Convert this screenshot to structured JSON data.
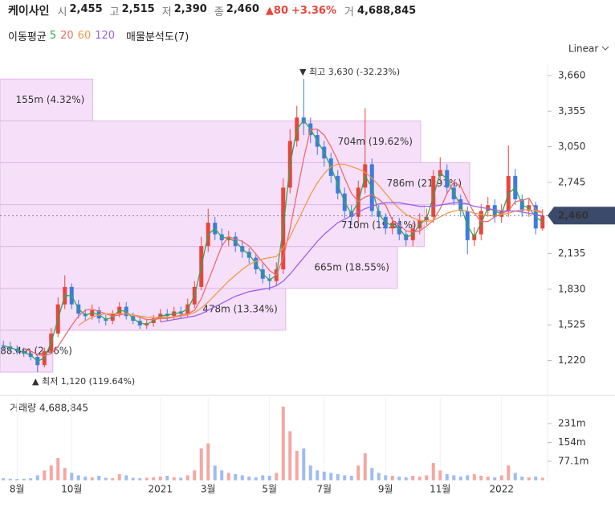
{
  "header": {
    "name": "케이사인",
    "fields": [
      {
        "label": "시",
        "value": "2,455"
      },
      {
        "label": "고",
        "value": "2,515"
      },
      {
        "label": "저",
        "value": "2,390"
      },
      {
        "label": "종",
        "value": "2,460"
      }
    ],
    "change": "▲80",
    "change_pct": "+3.36%",
    "volume_label": "거",
    "volume": "4,688,845"
  },
  "indicators": {
    "ma_title": "이동평균",
    "profile_label": "매물분석도(7)",
    "scale": "Linear"
  },
  "chart_data": [
    {
      "type": "candlestick",
      "categories": [
        null,
        null,
        "8월",
        null,
        null,
        null,
        null,
        null,
        null,
        null,
        "10월",
        null,
        null,
        null,
        null,
        null,
        null,
        null,
        null,
        null,
        null,
        null,
        null,
        "2021",
        null,
        null,
        null,
        null,
        null,
        null,
        "3월",
        null,
        null,
        null,
        null,
        null,
        null,
        null,
        null,
        "5월",
        null,
        null,
        null,
        null,
        null,
        null,
        null,
        "7월",
        null,
        null,
        null,
        null,
        null,
        null,
        null,
        null,
        "9월",
        null,
        null,
        null,
        null,
        null,
        null,
        null,
        "11월",
        null,
        null,
        null,
        null,
        null,
        null,
        null,
        null,
        "2022",
        null,
        null,
        null,
        null,
        null,
        null
      ],
      "open": [
        1350,
        1340,
        1320,
        1300,
        1280,
        1250,
        1180,
        1300,
        1450,
        1700,
        1850,
        1700,
        1620,
        1600,
        1650,
        1580,
        1560,
        1620,
        1680,
        1600,
        1560,
        1520,
        1540,
        1580,
        1620,
        1600,
        1640,
        1620,
        1700,
        1850,
        2200,
        2400,
        2300,
        2250,
        2280,
        2200,
        2150,
        2100,
        2000,
        1920,
        1900,
        2000,
        2700,
        3100,
        3300,
        3250,
        3150,
        3050,
        2950,
        2800,
        2650,
        2500,
        2450,
        2700,
        2900,
        2500,
        2450,
        2350,
        2400,
        2300,
        2250,
        2350,
        2420,
        2450,
        2800,
        2850,
        2700,
        2600,
        2500,
        2250,
        2300,
        2500,
        2550,
        2450,
        2500,
        2800,
        2600,
        2500,
        2550,
        2350
      ],
      "high": [
        1390,
        1380,
        1350,
        1330,
        1300,
        1280,
        1330,
        1500,
        1760,
        1950,
        1880,
        1740,
        1660,
        1700,
        1680,
        1610,
        1650,
        1720,
        1720,
        1630,
        1590,
        1570,
        1610,
        1660,
        1660,
        1680,
        1680,
        1750,
        1900,
        2280,
        2520,
        2450,
        2350,
        2330,
        2320,
        2250,
        2180,
        2140,
        2050,
        1960,
        2060,
        2780,
        3200,
        3400,
        3630,
        3300,
        3200,
        3100,
        3000,
        2850,
        2700,
        2550,
        2760,
        3380,
        2950,
        2550,
        2480,
        2450,
        2440,
        2330,
        2400,
        2480,
        2520,
        2850,
        2960,
        2900,
        2740,
        2640,
        2540,
        2360,
        2560,
        2620,
        2600,
        2560,
        3060,
        2860,
        2640,
        2600,
        2580,
        2515
      ],
      "low": [
        1300,
        1290,
        1270,
        1250,
        1220,
        1120,
        1160,
        1280,
        1420,
        1660,
        1660,
        1580,
        1560,
        1570,
        1540,
        1520,
        1530,
        1590,
        1570,
        1530,
        1490,
        1490,
        1510,
        1550,
        1560,
        1570,
        1580,
        1590,
        1670,
        1820,
        2150,
        2250,
        2200,
        2200,
        2150,
        2100,
        2050,
        1960,
        1880,
        1820,
        1860,
        1960,
        2650,
        3050,
        3150,
        3080,
        2980,
        2880,
        2740,
        2600,
        2440,
        2380,
        2400,
        2650,
        2450,
        2390,
        2300,
        2300,
        2250,
        2200,
        2200,
        2300,
        2380,
        2400,
        2750,
        2650,
        2550,
        2450,
        2130,
        2200,
        2250,
        2450,
        2400,
        2400,
        2450,
        2550,
        2450,
        2450,
        2300,
        2330
      ],
      "close": [
        1340,
        1320,
        1300,
        1280,
        1250,
        1180,
        1300,
        1450,
        1700,
        1850,
        1700,
        1620,
        1600,
        1650,
        1580,
        1560,
        1620,
        1680,
        1600,
        1560,
        1520,
        1540,
        1580,
        1620,
        1600,
        1640,
        1620,
        1700,
        1850,
        2200,
        2400,
        2300,
        2250,
        2280,
        2200,
        2150,
        2100,
        2000,
        1920,
        1900,
        2000,
        2700,
        3100,
        3300,
        3250,
        3150,
        3050,
        2950,
        2800,
        2650,
        2500,
        2450,
        2700,
        2900,
        2500,
        2450,
        2350,
        2400,
        2300,
        2250,
        2350,
        2420,
        2450,
        2800,
        2850,
        2700,
        2600,
        2500,
        2250,
        2300,
        2500,
        2550,
        2450,
        2500,
        2800,
        2600,
        2500,
        2550,
        2350,
        2460
      ],
      "up_color": "#e8453c",
      "down_color": "#3d7be0",
      "series": [
        {
          "name": "5",
          "color": "#2fa84f",
          "values": [
            1345,
            1330,
            1310,
            1290,
            1265,
            1215,
            1240,
            1375,
            1575,
            1775,
            1775,
            1660,
            1610,
            1625,
            1615,
            1570,
            1590,
            1650,
            1640,
            1580,
            1540,
            1530,
            1560,
            1600,
            1610,
            1620,
            1630,
            1660,
            1775,
            2025,
            2300,
            2350,
            2275,
            2265,
            2240,
            2175,
            2125,
            2050,
            1960,
            1910,
            1950,
            2350,
            2900,
            3200,
            3275,
            3200,
            3100,
            3000,
            2875,
            2725,
            2575,
            2475,
            2575,
            2800,
            2700,
            2475,
            2400,
            2375,
            2350,
            2275,
            2300,
            2385,
            2435,
            2625,
            2825,
            2775,
            2650,
            2550,
            2375,
            2275,
            2400,
            2525,
            2500,
            2475,
            2650,
            2700,
            2550,
            2525,
            2450,
            2405
          ]
        },
        {
          "name": "20",
          "color": "#f06a6a",
          "values": [
            null,
            null,
            null,
            1320,
            1300,
            1270,
            1260,
            1280,
            1340,
            1430,
            1520,
            1600,
            1650,
            1660,
            1640,
            1620,
            1600,
            1610,
            1620,
            1610,
            1590,
            1570,
            1570,
            1580,
            1580,
            1590,
            1610,
            1620,
            1650,
            1750,
            1900,
            2050,
            2200,
            2280,
            2260,
            2240,
            2200,
            2130,
            2060,
            1990,
            1950,
            2100,
            2350,
            2650,
            2950,
            3200,
            3200,
            3150,
            3050,
            2930,
            2780,
            2650,
            2580,
            2620,
            2640,
            2600,
            2550,
            2420,
            2380,
            2330,
            2320,
            2330,
            2370,
            2420,
            2520,
            2650,
            2750,
            2710,
            2590,
            2480,
            2410,
            2410,
            2450,
            2480,
            2500,
            2580,
            2590,
            2610,
            2510,
            2490
          ]
        },
        {
          "name": "60",
          "color": "#f09a4a",
          "values": [
            null,
            null,
            null,
            null,
            null,
            null,
            null,
            null,
            null,
            null,
            null,
            1520,
            1560,
            1590,
            1610,
            1620,
            1620,
            1620,
            1620,
            1610,
            1600,
            1590,
            1590,
            1590,
            1590,
            1590,
            1600,
            1610,
            1630,
            1670,
            1720,
            1780,
            1840,
            1900,
            1950,
            2000,
            2040,
            2070,
            2090,
            2100,
            2110,
            2180,
            2280,
            2400,
            2520,
            2640,
            2740,
            2820,
            2880,
            2900,
            2900,
            2880,
            2860,
            2830,
            2780,
            2720,
            2650,
            2580,
            2520,
            2470,
            2440,
            2420,
            2410,
            2420,
            2450,
            2480,
            2500,
            2510,
            2500,
            2480,
            2470,
            2460,
            2460,
            2470,
            2480,
            2500,
            2510,
            2510,
            2500,
            2480
          ]
        },
        {
          "name": "120",
          "color": "#9a62ea",
          "values": [
            null,
            null,
            null,
            null,
            null,
            null,
            null,
            null,
            null,
            null,
            null,
            null,
            null,
            null,
            null,
            null,
            null,
            null,
            null,
            null,
            null,
            null,
            null,
            1550,
            1560,
            1570,
            1580,
            1590,
            1600,
            1620,
            1650,
            1680,
            1710,
            1740,
            1770,
            1790,
            1810,
            1820,
            1830,
            1840,
            1860,
            1900,
            1960,
            2030,
            2100,
            2170,
            2240,
            2300,
            2350,
            2400,
            2430,
            2460,
            2490,
            2520,
            2540,
            2560,
            2570,
            2570,
            2570,
            2560,
            2550,
            2540,
            2540,
            2540,
            2550,
            2560,
            2570,
            2570,
            2560,
            2540,
            2530,
            2520,
            2510,
            2500,
            2500,
            2500,
            2490,
            2480,
            2470,
            2460
          ]
        }
      ],
      "volume_profile": {
        "bins": [
          3630,
          3271.4,
          2912.9,
          2554.3,
          2195.7,
          1837.1,
          1478.6,
          1120
        ],
        "values": [
          155,
          704,
          786,
          710,
          665,
          478,
          88.4
        ],
        "value_labels": [
          "155m (4.32%)",
          "704m (19.62%)",
          "786m (21.91%)",
          "710m (19.81%)",
          "665m (18.55%)",
          "478m (13.34%)",
          "88.4m (2.46%)"
        ],
        "color": "#f6e0f9"
      },
      "annotations": [
        "▼ 최고 3,630 (-32.23%)",
        "▲ 최저 1,120 (119.64%)"
      ],
      "current_price": {
        "value": 2460,
        "label": "2,460"
      },
      "ylim": [
        948,
        3756
      ],
      "yticks": [
        {
          "value": 1220,
          "label": "1,220"
        },
        {
          "value": 1525,
          "label": "1,525"
        },
        {
          "value": 1830,
          "label": "1,830"
        },
        {
          "value": 2135,
          "label": "2,135"
        },
        {
          "value": 2745,
          "label": "2,745"
        },
        {
          "value": 3050,
          "label": "3,050"
        },
        {
          "value": 3355,
          "label": "3,355"
        },
        {
          "value": 3660,
          "label": "3,660"
        }
      ]
    },
    {
      "type": "bar",
      "title": "거래량 4,688,845",
      "values": [
        8,
        6,
        5,
        6,
        8,
        20,
        40,
        60,
        90,
        50,
        30,
        20,
        15,
        12,
        18,
        10,
        8,
        25,
        20,
        10,
        8,
        10,
        12,
        15,
        18,
        12,
        10,
        20,
        40,
        130,
        150,
        60,
        40,
        30,
        25,
        20,
        15,
        12,
        20,
        18,
        30,
        300,
        200,
        120,
        130,
        60,
        40,
        35,
        30,
        25,
        20,
        18,
        60,
        110,
        50,
        30,
        20,
        18,
        15,
        12,
        18,
        15,
        20,
        70,
        40,
        25,
        20,
        15,
        20,
        25,
        18,
        15,
        12,
        20,
        60,
        30,
        15,
        12,
        15,
        10
      ],
      "ylim": [
        0,
        336
      ],
      "yticks": [
        {
          "value": 77.1,
          "label": "77.1m"
        },
        {
          "value": 154,
          "label": "154m"
        },
        {
          "value": 231,
          "label": "231m"
        }
      ]
    }
  ]
}
